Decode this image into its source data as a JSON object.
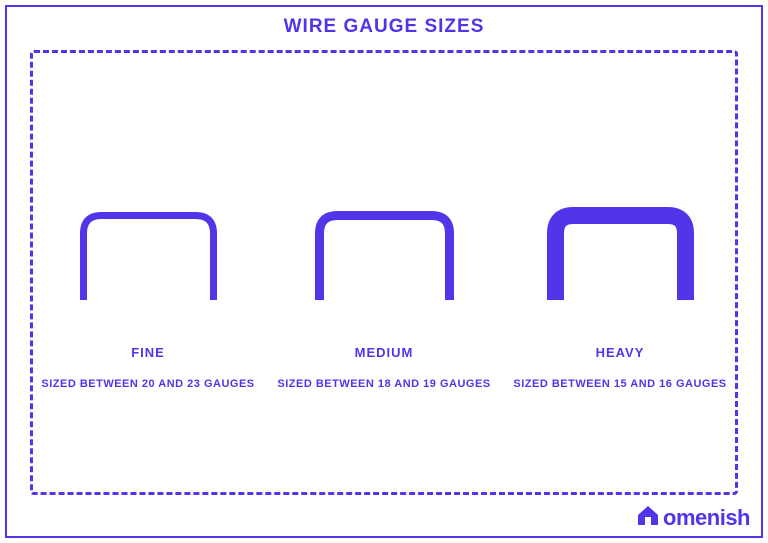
{
  "colors": {
    "accent": "#5235e8",
    "background": "#ffffff"
  },
  "title": {
    "text": "WIRE GAUGE SIZES",
    "fontsize": 19
  },
  "staple_shape": {
    "width": 130,
    "height": 85,
    "corner_radius": 18
  },
  "items": [
    {
      "label": "FINE",
      "description": "SIZED BETWEEN 20 AND 23 GAUGES",
      "stroke_width": 7
    },
    {
      "label": "MEDIUM",
      "description": "SIZED BETWEEN 18 AND 19 GAUGES",
      "stroke_width": 9
    },
    {
      "label": "HEAVY",
      "description": "SIZED BETWEEN 15 AND 16 GAUGES",
      "stroke_width": 17
    }
  ],
  "label_fontsize": 13,
  "desc_fontsize": 11,
  "brand": {
    "text": "omenish",
    "fontsize": 22
  }
}
